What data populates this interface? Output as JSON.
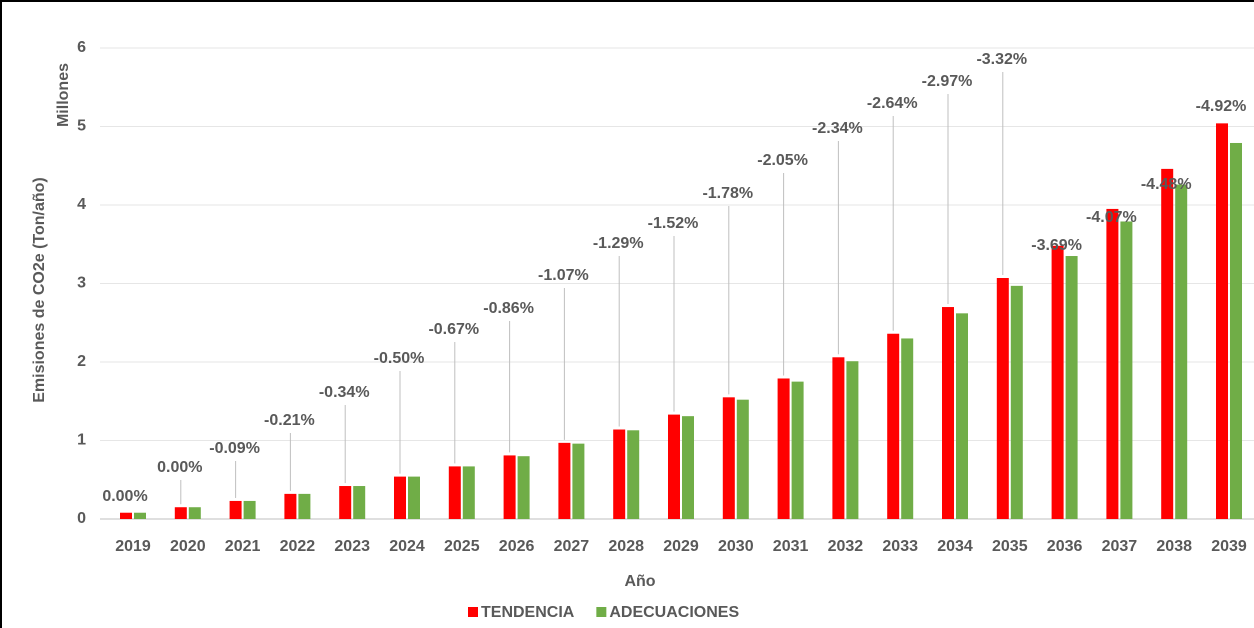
{
  "chart_data": {
    "type": "bar",
    "y_axis_label": "Emisiones de CO2e (Ton/año)",
    "y_axis_unit": "Millones",
    "x_axis_label": "Año",
    "categories": [
      "2019",
      "2020",
      "2021",
      "2022",
      "2023",
      "2024",
      "2025",
      "2026",
      "2027",
      "2028",
      "2029",
      "2030",
      "2031",
      "2032",
      "2033",
      "2034",
      "2035",
      "2036",
      "2037",
      "2038",
      "2039"
    ],
    "series": [
      {
        "name": "TENDENCIA",
        "color": "#ff0000",
        "values": [
          0.08,
          0.15,
          0.23,
          0.32,
          0.42,
          0.54,
          0.67,
          0.81,
          0.97,
          1.14,
          1.33,
          1.55,
          1.79,
          2.06,
          2.36,
          2.7,
          3.07,
          3.48,
          3.95,
          4.46,
          5.04
        ]
      },
      {
        "name": "ADECUACIONES",
        "color": "#70ad47",
        "values": [
          0.08,
          0.15,
          0.23,
          0.32,
          0.42,
          0.54,
          0.67,
          0.8,
          0.96,
          1.13,
          1.31,
          1.52,
          1.75,
          2.01,
          2.3,
          2.62,
          2.97,
          3.35,
          3.79,
          4.26,
          4.79
        ]
      }
    ],
    "annotations": [
      "0.00%",
      "0.00%",
      "-0.09%",
      "-0.21%",
      "-0.34%",
      "-0.50%",
      "-0.67%",
      "-0.86%",
      "-1.07%",
      "-1.29%",
      "-1.52%",
      "-1.78%",
      "-2.05%",
      "-2.34%",
      "-2.64%",
      "-2.97%",
      "-3.32%",
      "-3.69%",
      "-4.07%",
      "-4.48%",
      "-4.92%"
    ],
    "ylim": [
      0,
      6
    ],
    "yticks": [
      0,
      1,
      2,
      3,
      4,
      5,
      6
    ],
    "grid": true,
    "legend": "bottom"
  }
}
